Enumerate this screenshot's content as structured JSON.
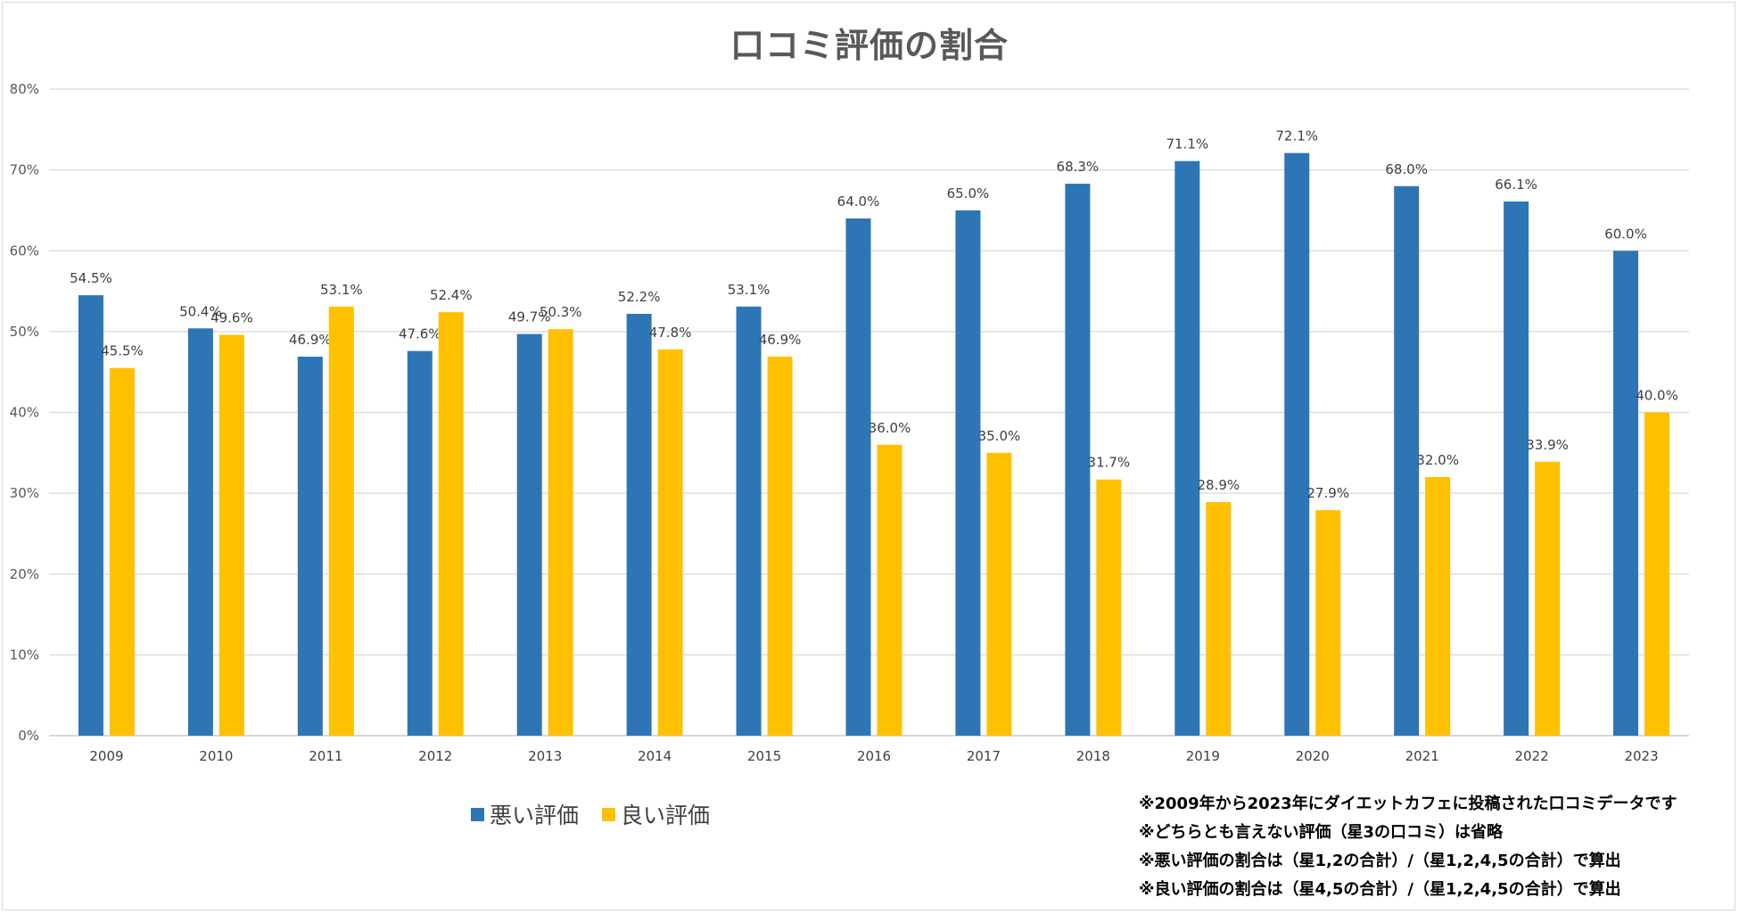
{
  "chart_data": {
    "type": "bar",
    "title": "口コミ評価の割合",
    "categories": [
      "2009",
      "2010",
      "2011",
      "2012",
      "2013",
      "2014",
      "2015",
      "2016",
      "2017",
      "2018",
      "2019",
      "2020",
      "2021",
      "2022",
      "2023"
    ],
    "series": [
      {
        "name": "悪い評価",
        "color": "#2e75b6",
        "values": [
          54.5,
          50.4,
          46.9,
          47.6,
          49.7,
          52.2,
          53.1,
          64.0,
          65.0,
          68.3,
          71.1,
          72.1,
          68.0,
          66.1,
          60.0
        ],
        "labels": [
          "54.5%",
          "50.4%",
          "46.9%",
          "47.6%",
          "49.7%",
          "52.2%",
          "53.1%",
          "64.0%",
          "65.0%",
          "68.3%",
          "71.1%",
          "72.1%",
          "68.0%",
          "66.1%",
          "60.0%"
        ]
      },
      {
        "name": "良い評価",
        "color": "#ffc000",
        "values": [
          45.5,
          49.6,
          53.1,
          52.4,
          50.3,
          47.8,
          46.9,
          36.0,
          35.0,
          31.7,
          28.9,
          27.9,
          32.0,
          33.9,
          40.0
        ],
        "labels": [
          "45.5%",
          "49.6%",
          "53.1%",
          "52.4%",
          "50.3%",
          "47.8%",
          "46.9%",
          "36.0%",
          "35.0%",
          "31.7%",
          "28.9%",
          "27.9%",
          "32.0%",
          "33.9%",
          "40.0%"
        ]
      }
    ],
    "ylim": [
      0,
      80
    ],
    "yticks": [
      0,
      10,
      20,
      30,
      40,
      50,
      60,
      70,
      80
    ],
    "ytick_labels": [
      "0%",
      "10%",
      "20%",
      "30%",
      "40%",
      "50%",
      "60%",
      "70%",
      "80%"
    ],
    "xlabel": "",
    "ylabel": "",
    "grid": true,
    "legend_position": "bottom-left"
  },
  "notes": [
    "※2009年から2023年にダイエットカフェに投稿された口コミデータです",
    "※どちらとも言えない評価（星3の口コミ）は省略",
    "※悪い評価の割合は（星1,2の合計）/（星1,2,4,5の合計）で算出",
    "※良い評価の割合は（星4,5の合計）/（星1,2,4,5の合計）で算出"
  ]
}
